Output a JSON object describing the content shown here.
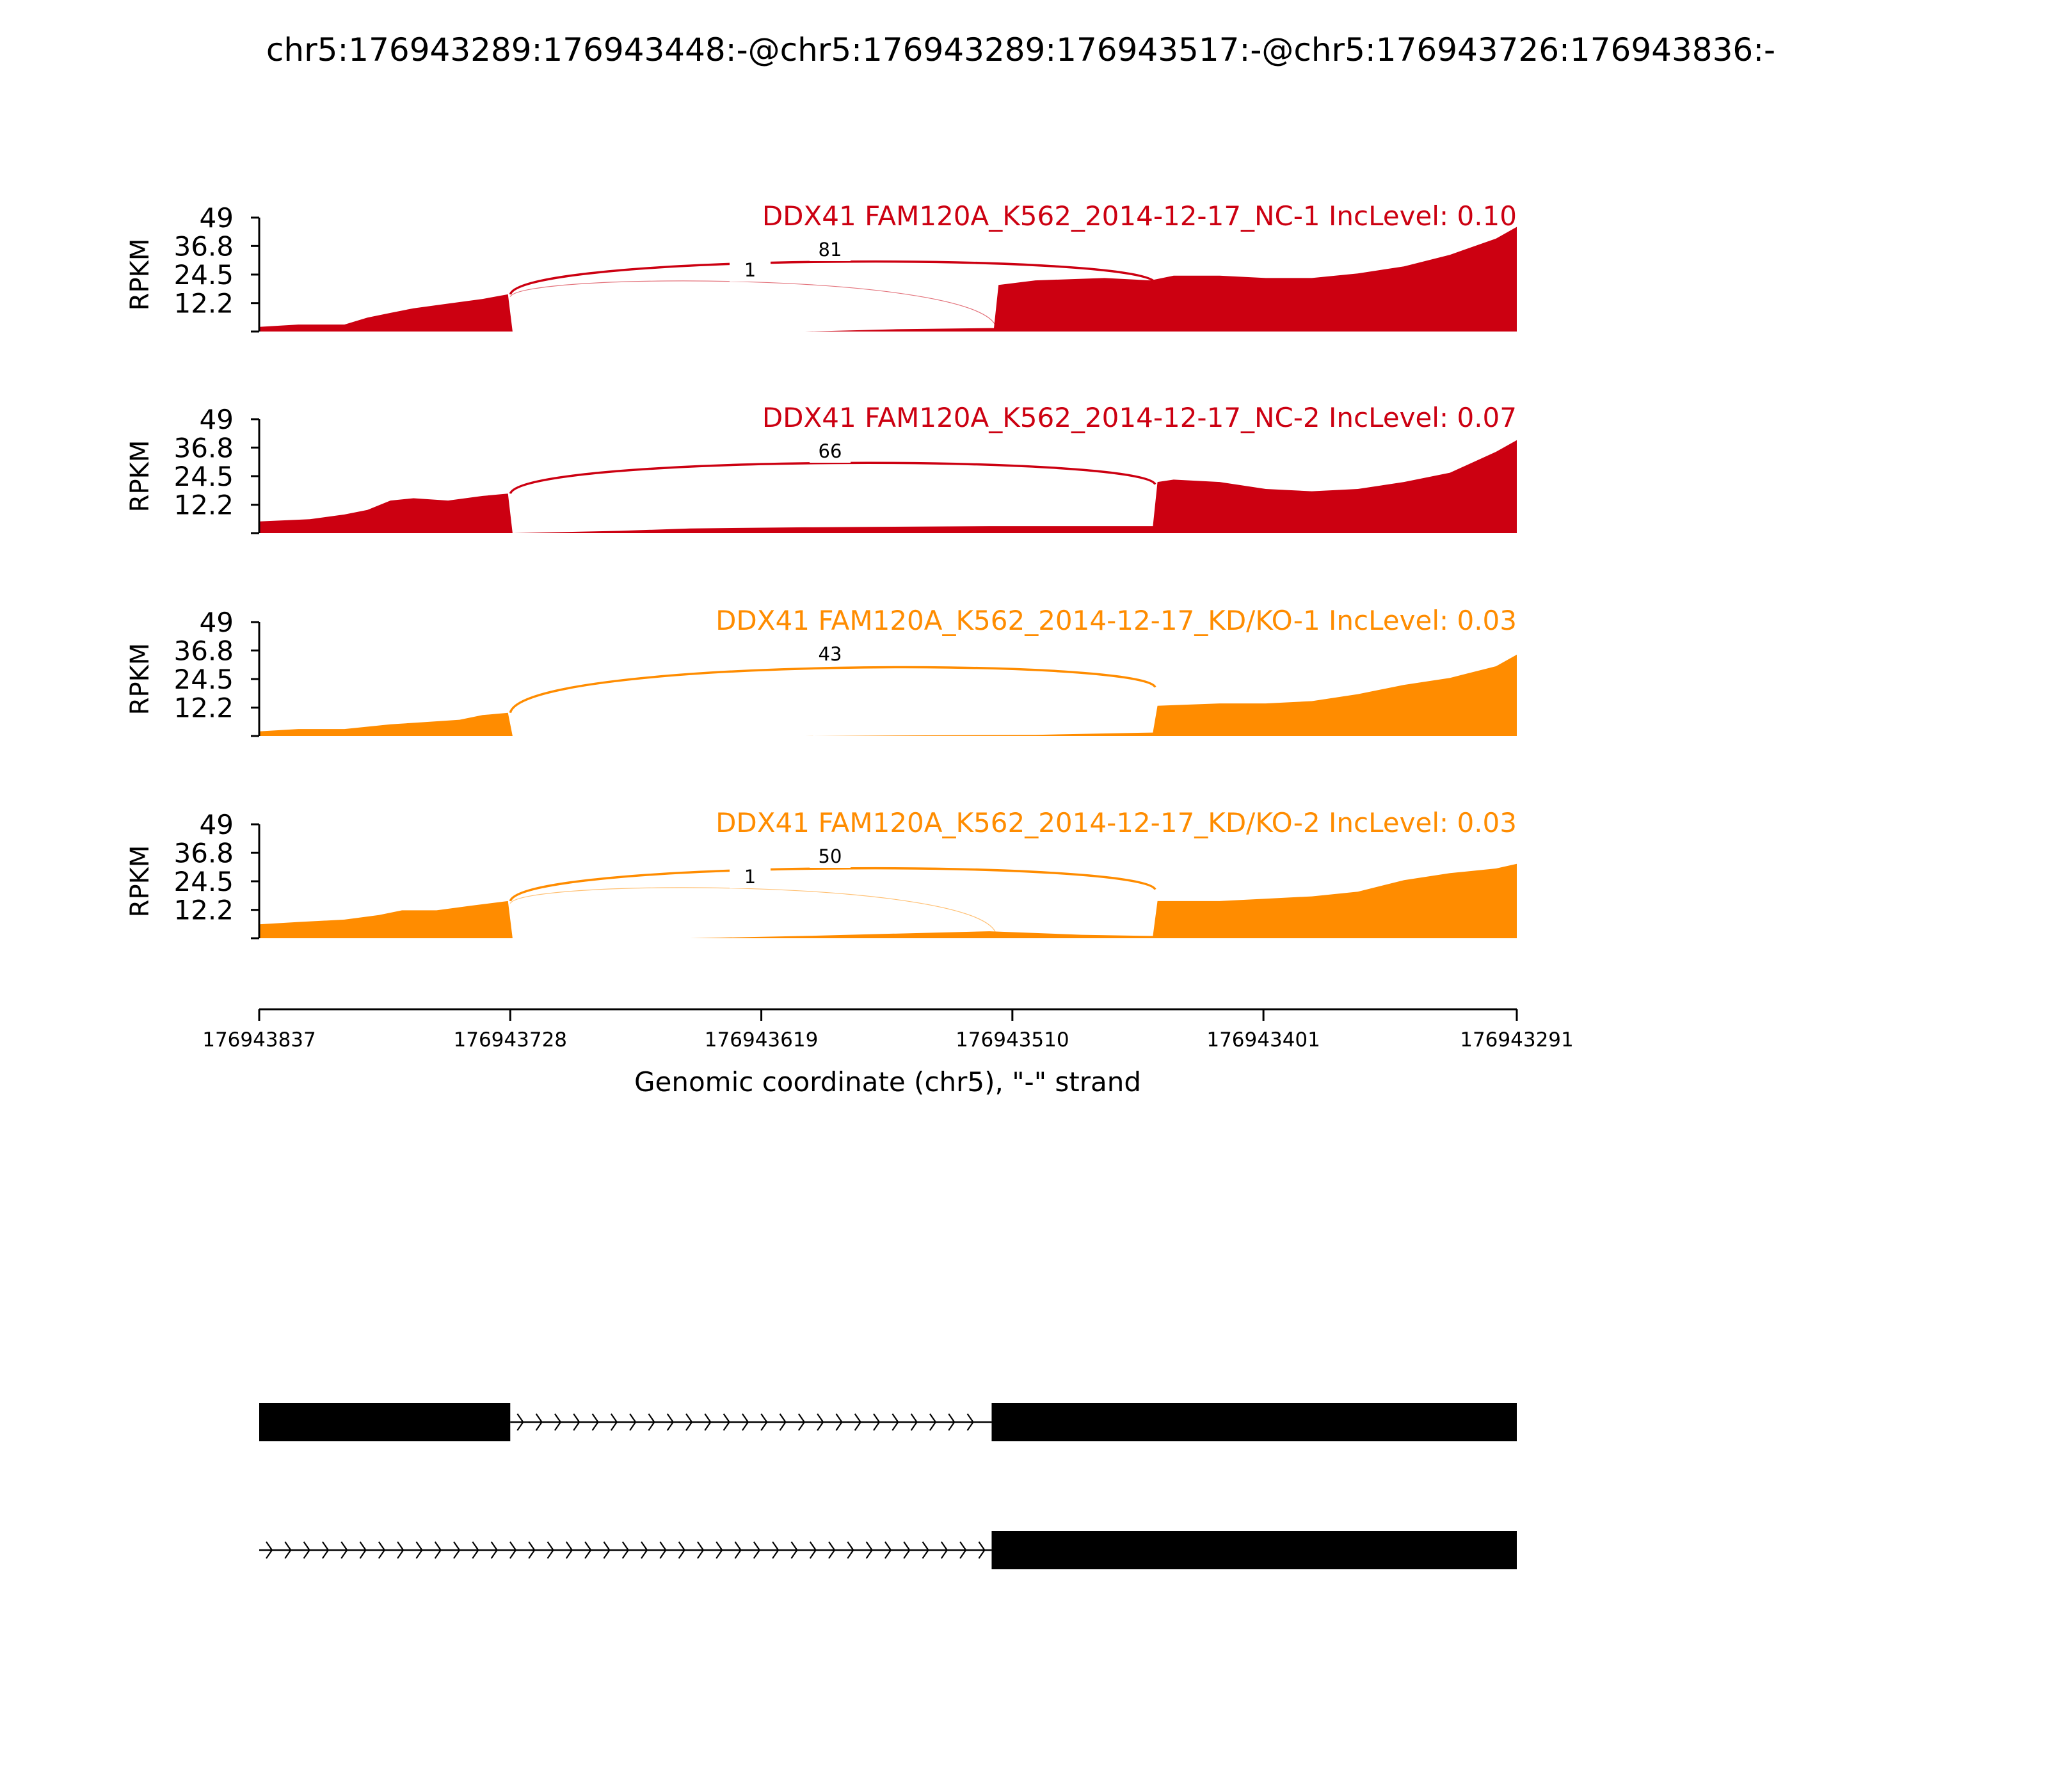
{
  "chart_data": {
    "type": "area",
    "title": "chr5:176943289:176943448:-@chr5:176943289:176943517:-@chr5:176943726:176943836:-",
    "ylabel": "RPKM",
    "xlabel": "Genomic coordinate (chr5), \"-\" strand",
    "yticks": [
      "49",
      "36.8",
      "24.5",
      "12.2"
    ],
    "ylim": [
      0,
      49
    ],
    "xlim": [
      176943837,
      176943291
    ],
    "xticks": [
      "176943837",
      "176943728",
      "176943619",
      "176943510",
      "176943401",
      "176943291"
    ],
    "x_axis_reversed": true,
    "series": [
      {
        "name": "DDX41 FAM120A_K562_2014-12-17_NC-1 IncLevel: 0.10",
        "color": "#cc0011",
        "coverage": {
          "x": [
            176943837,
            176943820,
            176943800,
            176943790,
            176943780,
            176943770,
            176943755,
            176943740,
            176943729,
            176943727,
            176943600,
            176943560,
            176943520,
            176943518,
            176943516,
            176943500,
            176943470,
            176943450,
            176943440,
            176943420,
            176943400,
            176943380,
            176943360,
            176943340,
            176943320,
            176943300,
            176943291
          ],
          "y": [
            2,
            3,
            3,
            6,
            8,
            10,
            12,
            14,
            16,
            0,
            0,
            1,
            1.5,
            1.5,
            20,
            22,
            23,
            22,
            24,
            24,
            23,
            23,
            25,
            28,
            33,
            40,
            45
          ]
        },
        "junctions": [
          {
            "from": 176943728,
            "to": 176943448,
            "count": "81"
          },
          {
            "from": 176943728,
            "to": 176943517,
            "count": "1"
          }
        ]
      },
      {
        "name": "DDX41 FAM120A_K562_2014-12-17_NC-2 IncLevel: 0.07",
        "color": "#cc0011",
        "coverage": {
          "x": [
            176943837,
            176943815,
            176943800,
            176943790,
            176943780,
            176943770,
            176943755,
            176943740,
            176943729,
            176943727,
            176943680,
            176943650,
            176943600,
            176943520,
            176943449,
            176943447,
            176943440,
            176943420,
            176943400,
            176943380,
            176943360,
            176943340,
            176943320,
            176943300,
            176943291
          ],
          "y": [
            5,
            6,
            8,
            10,
            14,
            15,
            14,
            16,
            17,
            0,
            1,
            2,
            2.5,
            3,
            3,
            22,
            23,
            22,
            19,
            18,
            19,
            22,
            26,
            35,
            40
          ]
        },
        "junctions": [
          {
            "from": 176943728,
            "to": 176943448,
            "count": "66"
          }
        ]
      },
      {
        "name": "DDX41 FAM120A_K562_2014-12-17_KD/KO-1 IncLevel: 0.03",
        "color": "#ff8c00",
        "coverage": {
          "x": [
            176943837,
            176943820,
            176943800,
            176943780,
            176943765,
            176943750,
            176943740,
            176943729,
            176943727,
            176943600,
            176943500,
            176943449,
            176943447,
            176943420,
            176943400,
            176943380,
            176943360,
            176943340,
            176943320,
            176943300,
            176943291
          ],
          "y": [
            2,
            3,
            3,
            5,
            6,
            7,
            9,
            10,
            0,
            0,
            0.5,
            1.5,
            13,
            14,
            14,
            15,
            18,
            22,
            25,
            30,
            35
          ]
        },
        "junctions": [
          {
            "from": 176943728,
            "to": 176943448,
            "count": "43"
          }
        ]
      },
      {
        "name": "DDX41 FAM120A_K562_2014-12-17_KD/KO-2 IncLevel: 0.03",
        "color": "#ff8c00",
        "coverage": {
          "x": [
            176943837,
            176943820,
            176943800,
            176943785,
            176943775,
            176943760,
            176943745,
            176943729,
            176943727,
            176943650,
            176943600,
            176943560,
            176943520,
            176943480,
            176943450,
            176943449,
            176943447,
            176943420,
            176943400,
            176943380,
            176943360,
            176943340,
            176943320,
            176943300,
            176943291
          ],
          "y": [
            6,
            7,
            8,
            10,
            12,
            12,
            14,
            16,
            0,
            0,
            1,
            2,
            3,
            1.5,
            1,
            1,
            16,
            16,
            17,
            18,
            20,
            25,
            28,
            30,
            32
          ]
        },
        "junctions": [
          {
            "from": 176943728,
            "to": 176943448,
            "count": "50"
          },
          {
            "from": 176943728,
            "to": 176943517,
            "count": "1"
          }
        ]
      }
    ],
    "isoforms": [
      {
        "exons": [
          [
            176943837,
            176943728
          ],
          [
            176943519,
            176943291
          ]
        ],
        "intron": [
          176943728,
          176943519
        ]
      },
      {
        "exons": [
          [
            176943519,
            176943291
          ]
        ],
        "intron": [
          176943837,
          176943519
        ]
      }
    ]
  }
}
